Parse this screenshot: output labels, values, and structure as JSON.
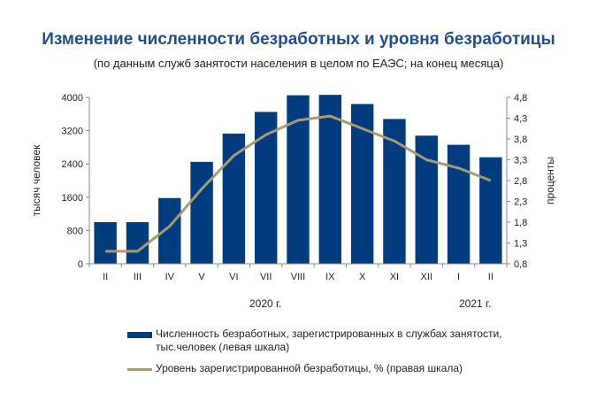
{
  "title": "Изменение численности безработных и уровня безработицы",
  "subtitle": "(по данным служб занятости населения в целом по ЕАЭС; на конец месяца)",
  "years": [
    "2020 г.",
    "2021 г."
  ],
  "colors": {
    "bar": "#003c7e",
    "line": "#a79a73",
    "title": "#1f4e8c"
  },
  "chart_data": {
    "type": "bar",
    "categories": [
      "II",
      "III",
      "IV",
      "V",
      "VI",
      "VII",
      "VIII",
      "IX",
      "X",
      "XI",
      "XII",
      "I",
      "II"
    ],
    "series": [
      {
        "name": "Численность безработных, зарегистрированных в  службах занятости, тыс.человек (левая шкала)",
        "type": "bar",
        "axis": "left",
        "values": [
          1000,
          1000,
          1580,
          2450,
          3130,
          3650,
          4050,
          4060,
          3840,
          3480,
          3080,
          2860,
          2560
        ]
      },
      {
        "name": "Уровень зарегистрированной безработицы, % (правая шкала)",
        "type": "line",
        "axis": "right",
        "values": [
          1.1,
          1.1,
          1.7,
          2.6,
          3.4,
          3.9,
          4.25,
          4.35,
          4.05,
          3.75,
          3.3,
          3.1,
          2.8
        ]
      }
    ],
    "ylabel": "тысяч человек",
    "ylim": [
      0,
      4000
    ],
    "yticks": [
      "0",
      "800",
      "1600",
      "2400",
      "3200",
      "4000"
    ],
    "y2label": "проценты",
    "y2lim": [
      0.8,
      4.8
    ],
    "y2ticks": [
      "0,8",
      "1,3",
      "1,8",
      "2,3",
      "2,8",
      "3,3",
      "3,8",
      "4,3",
      "4,8"
    ],
    "legend_position": "bottom",
    "grid": false
  }
}
